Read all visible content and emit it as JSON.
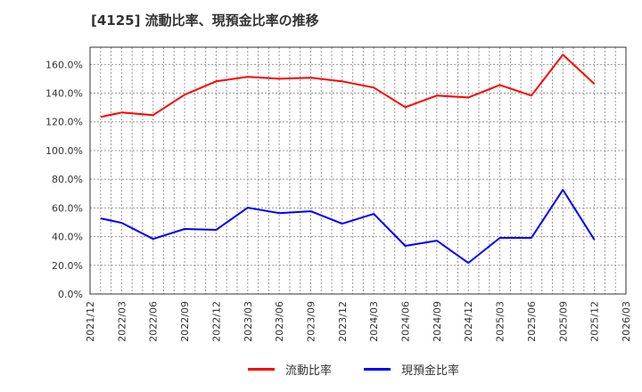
{
  "title": "[4125]  流動比率、現預金比率の推移",
  "colors": {
    "current_ratio": "#ff0000",
    "cash_ratio": "#0000ff",
    "grid": "#999999",
    "axis": "#333333"
  },
  "legend": [
    {
      "label": "流動比率",
      "color": "#ff0000"
    },
    {
      "label": "現預金比率",
      "color": "#0000ff"
    }
  ],
  "chart_data": {
    "type": "line",
    "title": "[4125]  流動比率、現預金比率の推移",
    "xlabel": "",
    "ylabel": "",
    "x_tick_labels": [
      "2021/12",
      "2022/03",
      "2022/06",
      "2022/09",
      "2022/12",
      "2023/03",
      "2023/06",
      "2023/09",
      "2023/12",
      "2024/03",
      "2024/06",
      "2024/09",
      "2024/12",
      "2025/03",
      "2025/06",
      "2025/09",
      "2025/12",
      "2026/03"
    ],
    "y_tick_labels": [
      "0.0%",
      "20.0%",
      "40.0%",
      "60.0%",
      "80.0%",
      "100.0%",
      "120.0%",
      "140.0%",
      "160.0%"
    ],
    "ylim": [
      0,
      172
    ],
    "grid": true,
    "legend_position": "bottom",
    "x_months_from_2021_12": [
      1,
      3,
      6,
      9,
      12,
      15,
      18,
      21,
      24,
      27,
      30,
      33,
      36,
      39,
      42,
      45,
      48
    ],
    "series": [
      {
        "name": "流動比率",
        "color": "#ff0000",
        "values": [
          123.4,
          126.5,
          124.7,
          138.9,
          148.2,
          151.3,
          150.0,
          150.7,
          148.2,
          143.9,
          130.2,
          138.3,
          137.0,
          145.7,
          138.3,
          166.8,
          146.4
        ]
      },
      {
        "name": "現預金比率",
        "color": "#0000ff",
        "values": [
          52.7,
          49.6,
          38.4,
          45.3,
          44.7,
          60.2,
          56.4,
          57.7,
          49.0,
          55.8,
          33.5,
          37.2,
          21.7,
          39.1,
          39.1,
          72.6,
          37.8
        ]
      }
    ]
  }
}
